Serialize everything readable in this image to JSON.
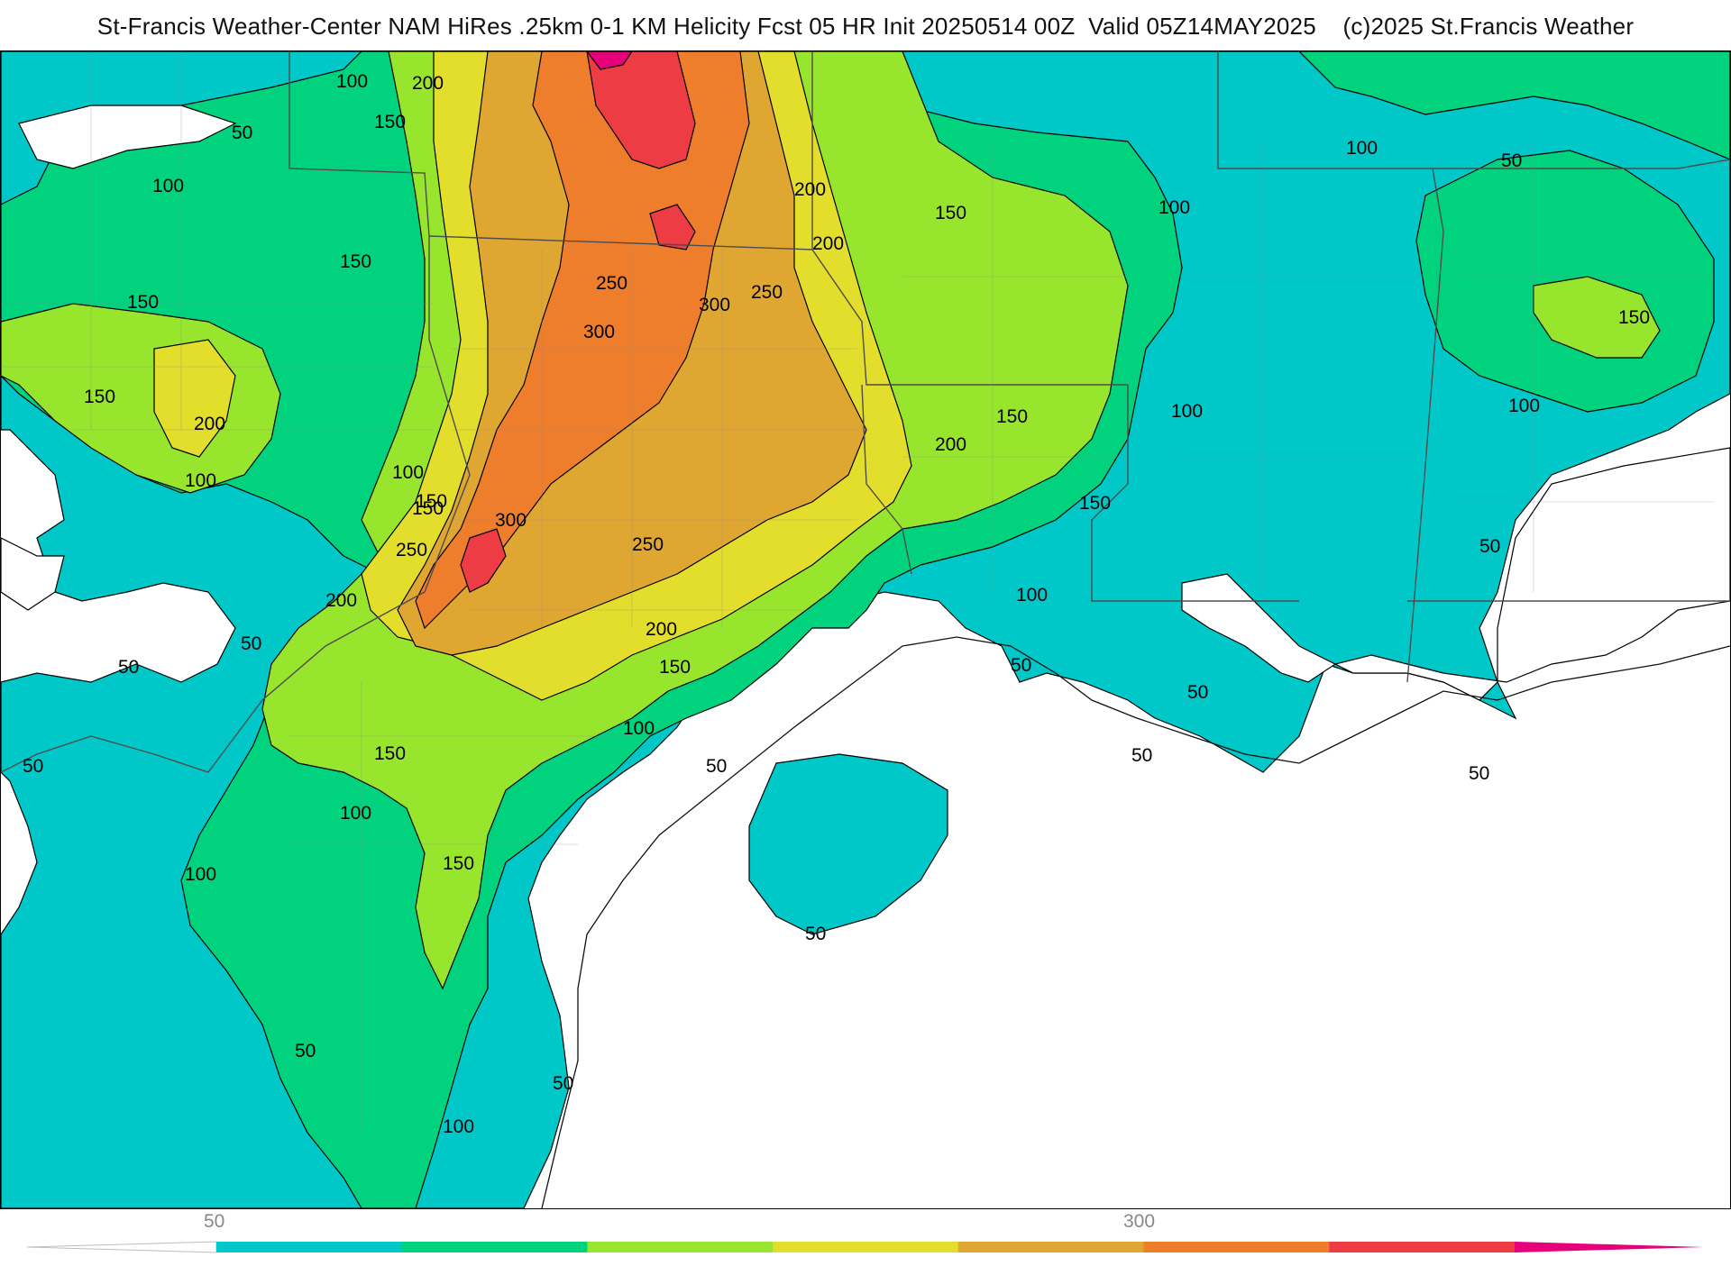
{
  "header": {
    "title": "St-Francis Weather-Center NAM HiRes .25km 0-1 KM Helicity Fcst 05 HR Init 20250514 00Z  Valid 05Z14MAY2025    (c)2025 St.Francis Weather"
  },
  "map": {
    "field": "0-1 KM Helicity",
    "contour_labels": [
      "100",
      "200",
      "50",
      "150",
      "100",
      "150",
      "150",
      "150",
      "200",
      "100",
      "100",
      "150",
      "50",
      "50",
      "50",
      "100",
      "50",
      "100",
      "50",
      "200",
      "150",
      "250",
      "300",
      "250",
      "300",
      "300",
      "250",
      "200",
      "250",
      "200",
      "150",
      "100",
      "150",
      "150",
      "100",
      "50",
      "100",
      "50",
      "200",
      "150",
      "100",
      "150",
      "200",
      "150",
      "100",
      "100",
      "150",
      "100",
      "50",
      "50",
      "50",
      "50",
      "50",
      "50"
    ],
    "colors": {
      "lt50": "#ffffff",
      "c50": "#00c8c8",
      "c100": "#00d27e",
      "c150": "#98e52e",
      "c200": "#e3dd2c",
      "c250": "#e0a632",
      "c300": "#ee7e2c",
      "c350": "#ee3c44",
      "c400": "#e6007a",
      "contour": "#000000",
      "borders": "#8a8a8a"
    }
  },
  "colorbar": {
    "tick_labels": [
      "50",
      "300"
    ],
    "segments": [
      "#00c8c8",
      "#00d27e",
      "#98e52e",
      "#e3dd2c",
      "#e0a632",
      "#ee7e2c",
      "#ee3c44"
    ],
    "left_arrow_color": "#ffffff",
    "right_arrow_color": "#e6007a"
  }
}
